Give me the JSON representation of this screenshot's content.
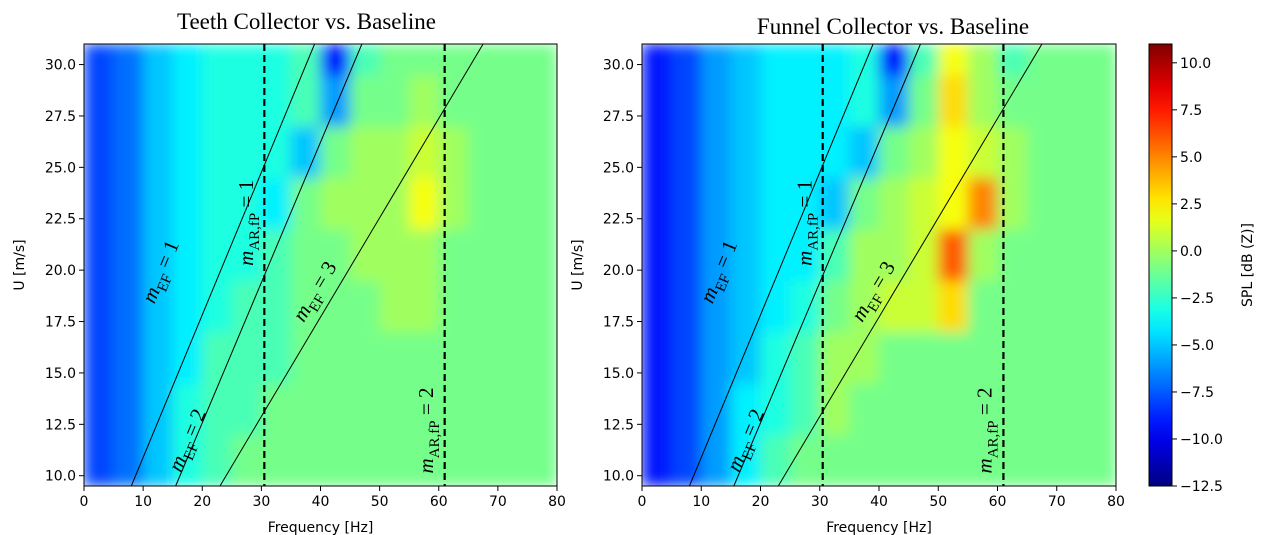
{
  "chart_data": [
    {
      "type": "heatmap",
      "title": "Teeth Collector vs. Baseline",
      "xlabel": "Frequency [Hz]",
      "ylabel": "U [m/s]",
      "xlim": [
        0,
        80
      ],
      "ylim": [
        9.5,
        31
      ],
      "xticks": [
        0,
        10,
        20,
        30,
        40,
        50,
        60,
        70,
        80
      ],
      "yticks": [
        {
          "value": 10,
          "label": "10.0"
        },
        {
          "value": 12.5,
          "label": "12.5"
        },
        {
          "value": 15,
          "label": "15.0"
        },
        {
          "value": 17.5,
          "label": "17.5"
        },
        {
          "value": 20,
          "label": "20.0"
        },
        {
          "value": 22.5,
          "label": "22.5"
        },
        {
          "value": 25,
          "label": "25.0"
        },
        {
          "value": 27.5,
          "label": "27.5"
        },
        {
          "value": 30,
          "label": "30.0"
        }
      ],
      "x_edges": [
        0,
        5,
        10,
        15,
        20,
        25,
        30,
        35,
        40,
        45,
        50,
        55,
        60,
        65,
        70,
        75,
        80
      ],
      "y_edges": [
        9.5,
        12,
        14.5,
        17,
        19.5,
        22,
        24.5,
        27,
        29.5,
        31
      ],
      "z": [
        [
          -8,
          -7,
          -5,
          -3,
          -2,
          -1,
          -1,
          -1,
          -1,
          -1,
          -1,
          -1,
          -1,
          -1,
          -1,
          -1
        ],
        [
          -8,
          -7,
          -5,
          -3,
          -2,
          -2,
          -1,
          -1,
          -1,
          -1,
          -1,
          -1,
          -1,
          -1,
          -1,
          -1
        ],
        [
          -8,
          -7,
          -5,
          -4,
          -2,
          -2,
          -2,
          -1,
          -1,
          -1,
          -1,
          -1,
          -1,
          -1,
          -1,
          -1
        ],
        [
          -8,
          -7,
          -5,
          -4,
          -3,
          -2,
          -2,
          -1,
          -1,
          -1,
          0,
          0,
          -1,
          -1,
          -1,
          -1
        ],
        [
          -8,
          -7,
          -5,
          -4,
          -3,
          -3,
          -2,
          -1,
          -1,
          0,
          0,
          0,
          -1,
          -1,
          -1,
          -1
        ],
        [
          -8,
          -7,
          -5,
          -4,
          -3,
          -3,
          -4,
          -1,
          0,
          0,
          0,
          2,
          0,
          -1,
          -1,
          -1
        ],
        [
          -8,
          -7,
          -5,
          -4,
          -3,
          -3,
          -3,
          -5,
          -1,
          0,
          0,
          1,
          0,
          -1,
          -1,
          -1
        ],
        [
          -8,
          -7,
          -5,
          -4,
          -3,
          -3,
          -3,
          -2,
          -6,
          -1,
          -1,
          0,
          -1,
          -1,
          -1,
          -1
        ],
        [
          -8,
          -7,
          -5,
          -4,
          -3,
          -3,
          -3,
          -2,
          -9,
          -2,
          -1,
          -1,
          -1,
          -1,
          -1,
          -1
        ]
      ],
      "lines": [
        {
          "x": [
            8,
            39
          ],
          "y": [
            9.5,
            31
          ]
        },
        {
          "x": [
            15.5,
            47
          ],
          "y": [
            9.5,
            31
          ]
        },
        {
          "x": [
            23,
            67.5
          ],
          "y": [
            9.5,
            31
          ]
        }
      ],
      "vlines": [
        30.5,
        61
      ],
      "annotations": [
        {
          "var": "m",
          "sub": "EF",
          "rest": " = 1"
        },
        {
          "var": "m",
          "sub": "EF",
          "rest": " = 2"
        },
        {
          "var": "m",
          "sub": "EF",
          "rest": " = 3"
        },
        {
          "var": "m",
          "sub": "AR,fP",
          "rest": " = 1"
        },
        {
          "var": "m",
          "sub": "AR,fP",
          "rest": " = 2"
        }
      ]
    },
    {
      "type": "heatmap",
      "title": "Funnel Collector vs. Baseline",
      "xlabel": "Frequency [Hz]",
      "ylabel": "U [m/s]",
      "xlim": [
        0,
        80
      ],
      "ylim": [
        9.5,
        31
      ],
      "xticks": [
        0,
        10,
        20,
        30,
        40,
        50,
        60,
        70,
        80
      ],
      "yticks": [
        {
          "value": 10,
          "label": "10.0"
        },
        {
          "value": 12.5,
          "label": "12.5"
        },
        {
          "value": 15,
          "label": "15.0"
        },
        {
          "value": 17.5,
          "label": "17.5"
        },
        {
          "value": 20,
          "label": "20.0"
        },
        {
          "value": 22.5,
          "label": "22.5"
        },
        {
          "value": 25,
          "label": "25.0"
        },
        {
          "value": 27.5,
          "label": "27.5"
        },
        {
          "value": 30,
          "label": "30.0"
        }
      ],
      "x_edges": [
        0,
        5,
        10,
        15,
        20,
        25,
        30,
        35,
        40,
        45,
        50,
        55,
        60,
        65,
        70,
        75,
        80
      ],
      "y_edges": [
        9.5,
        12,
        14.5,
        17,
        19.5,
        22,
        24.5,
        27,
        29.5,
        31
      ],
      "z": [
        [
          -9,
          -8,
          -6,
          -4,
          -2,
          -1,
          -1,
          -1,
          -1,
          -1,
          -1,
          -1,
          -1,
          -1,
          -1,
          -1
        ],
        [
          -9,
          -8,
          -6,
          -4,
          -3,
          -2,
          0,
          -1,
          -1,
          -1,
          -1,
          -1,
          -1,
          -1,
          -1,
          -1
        ],
        [
          -9,
          -8,
          -6,
          -5,
          -3,
          -2,
          0,
          0,
          -1,
          -1,
          -1,
          -1,
          -1,
          -1,
          -1,
          -1
        ],
        [
          -9,
          -8,
          -6,
          -5,
          -4,
          -3,
          -1,
          0,
          1,
          1,
          3,
          -1,
          -1,
          -1,
          -1,
          -1
        ],
        [
          -9,
          -8,
          -6,
          -5,
          -4,
          -4,
          -2,
          0,
          0,
          1,
          6,
          0,
          -1,
          -1,
          -1,
          -1
        ],
        [
          -9,
          -8,
          -6,
          -5,
          -4,
          -4,
          -5,
          -1,
          0,
          1,
          2,
          5,
          0,
          -1,
          -1,
          -1
        ],
        [
          -9,
          -8,
          -6,
          -5,
          -4,
          -4,
          -4,
          -5,
          -1,
          0,
          2,
          1,
          0,
          -1,
          -1,
          -1
        ],
        [
          -9,
          -8,
          -6,
          -5,
          -4,
          -4,
          -4,
          -3,
          -6,
          -1,
          3,
          0,
          -1,
          -1,
          -1,
          -1
        ],
        [
          -9,
          -8,
          -6,
          -5,
          -4,
          -4,
          -4,
          -3,
          -9,
          -2,
          2,
          0,
          -2,
          -1,
          -1,
          -1
        ]
      ],
      "lines": [
        {
          "x": [
            8,
            39
          ],
          "y": [
            9.5,
            31
          ]
        },
        {
          "x": [
            15.5,
            47
          ],
          "y": [
            9.5,
            31
          ]
        },
        {
          "x": [
            23,
            67.5
          ],
          "y": [
            9.5,
            31
          ]
        }
      ],
      "vlines": [
        30.5,
        61
      ],
      "annotations": [
        {
          "var": "m",
          "sub": "EF",
          "rest": " = 1"
        },
        {
          "var": "m",
          "sub": "EF",
          "rest": " = 2"
        },
        {
          "var": "m",
          "sub": "EF",
          "rest": " = 3"
        },
        {
          "var": "m",
          "sub": "AR,fP",
          "rest": " = 1"
        },
        {
          "var": "m",
          "sub": "AR,fP",
          "rest": " = 2"
        }
      ],
      "colorbar": {
        "label": "SPL [dB (Z)]",
        "zlim": [
          -12.5,
          11
        ],
        "ticks": [
          {
            "value": -12.5,
            "label": "−12.5"
          },
          {
            "value": -10,
            "label": "−10.0"
          },
          {
            "value": -7.5,
            "label": "−7.5"
          },
          {
            "value": -5,
            "label": "−5.0"
          },
          {
            "value": -2.5,
            "label": "−2.5"
          },
          {
            "value": 0,
            "label": "0.0"
          },
          {
            "value": 2.5,
            "label": "2.5"
          },
          {
            "value": 5,
            "label": "5.0"
          },
          {
            "value": 7.5,
            "label": "7.5"
          },
          {
            "value": 10,
            "label": "10.0"
          }
        ]
      }
    }
  ]
}
